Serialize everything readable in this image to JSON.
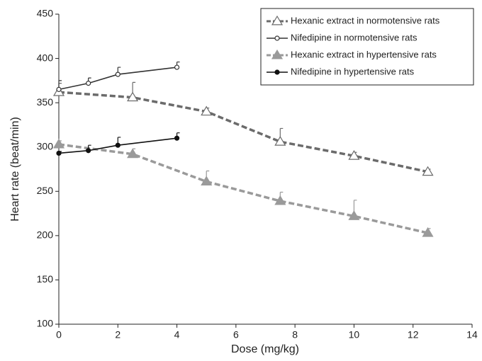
{
  "chart_data": {
    "type": "line",
    "x_label": "Dose (mg/kg)",
    "y_label": "Heart rate (beat/min)",
    "xlim": [
      0,
      14
    ],
    "xticks": [
      0,
      2,
      4,
      6,
      8,
      10,
      12,
      14
    ],
    "ylim": [
      100,
      450
    ],
    "yticks": [
      100,
      150,
      200,
      250,
      300,
      350,
      400,
      450
    ],
    "grid": false,
    "legend": "top-right",
    "series": [
      {
        "name": "Hexanic extract in normotensive rats",
        "color": "#6b6b6b",
        "dashed": true,
        "marker": "open-triangle",
        "x": [
          0,
          2.5,
          5,
          7.5,
          10,
          12.5
        ],
        "values": [
          362,
          356,
          340,
          306,
          290,
          272
        ],
        "errors": [
          10,
          17,
          4,
          15,
          4,
          3
        ]
      },
      {
        "name": "Nifedipine in normotensive rats",
        "color": "#333333",
        "dashed": false,
        "marker": "open-circle",
        "x": [
          0,
          1,
          2,
          4
        ],
        "values": [
          365,
          372,
          382,
          390
        ],
        "errors": [
          10,
          6,
          8,
          6
        ]
      },
      {
        "name": "Hexanic extract in hypertensive rats",
        "color": "#9a9a9a",
        "dashed": true,
        "marker": "filled-triangle",
        "x": [
          0,
          2.5,
          5,
          7.5,
          10,
          12.5
        ],
        "values": [
          303,
          292,
          261,
          239,
          222,
          203
        ],
        "errors": [
          4,
          6,
          12,
          10,
          18,
          5
        ]
      },
      {
        "name": "Nifedipine in hypertensive rats",
        "color": "#111111",
        "dashed": false,
        "marker": "filled-circle",
        "x": [
          0,
          1,
          2,
          4
        ],
        "values": [
          293,
          296,
          302,
          310
        ],
        "errors": [
          2,
          6,
          9,
          6
        ]
      }
    ]
  }
}
